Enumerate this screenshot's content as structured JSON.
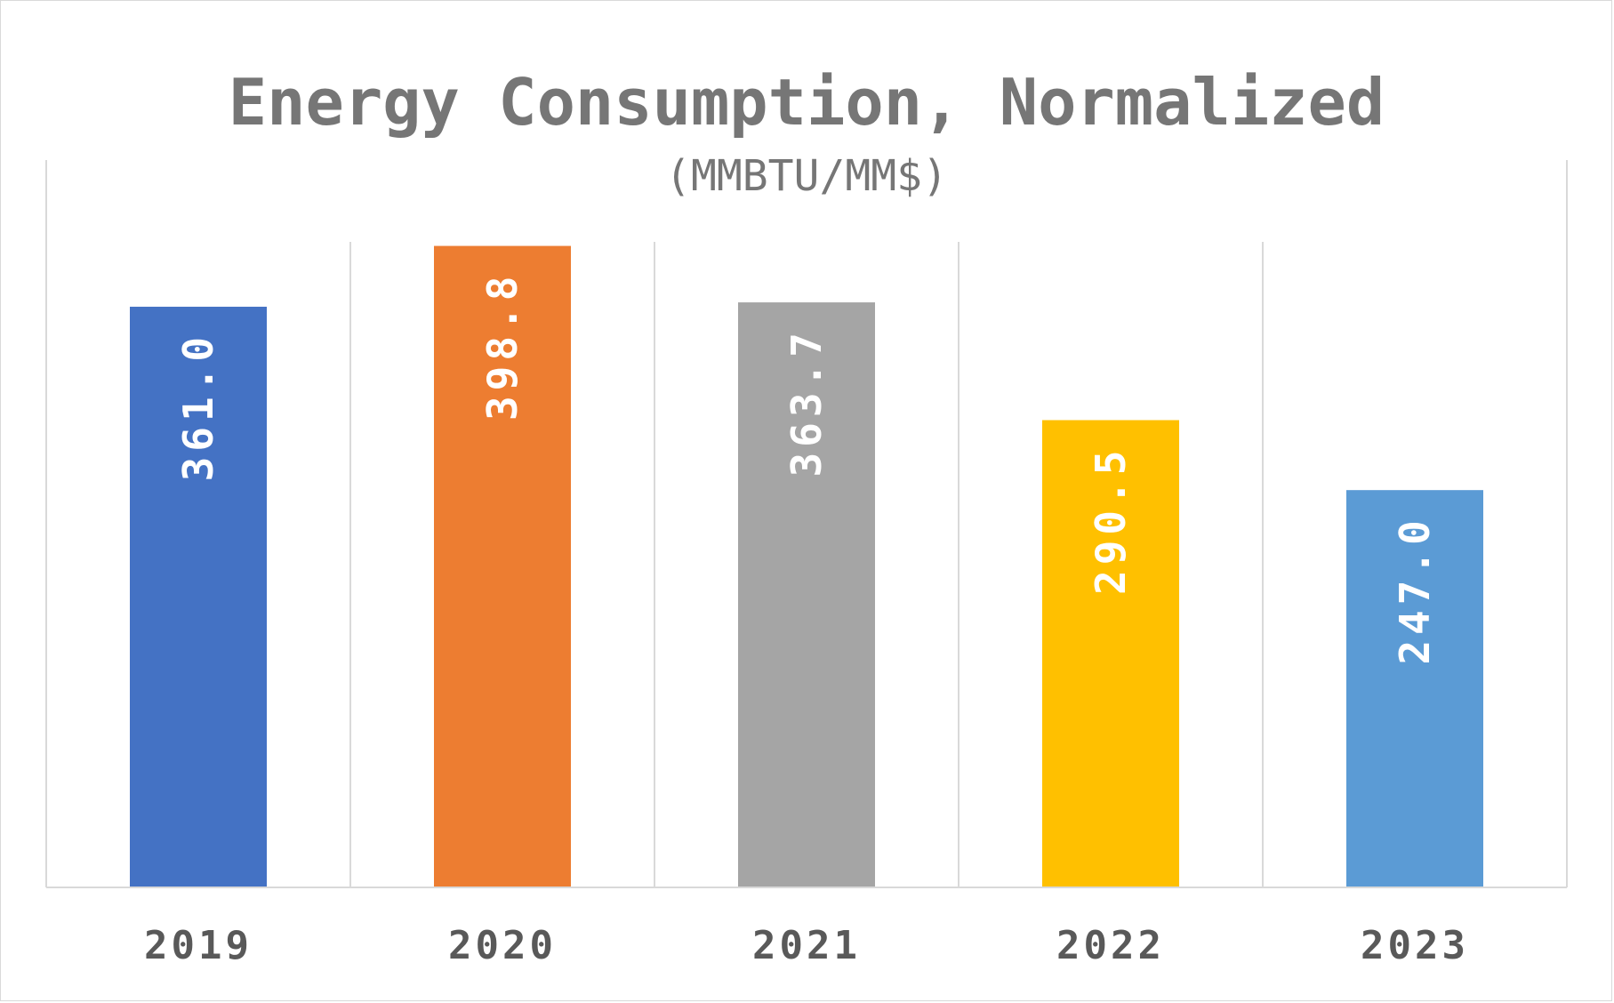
{
  "chart_data": {
    "type": "bar",
    "title": "Energy Consumption, Normalized",
    "subtitle": "(MMBTU/MM$)",
    "categories": [
      "2019",
      "2020",
      "2021",
      "2022",
      "2023"
    ],
    "values": [
      361.0,
      398.8,
      363.7,
      290.5,
      247.0
    ],
    "data_labels": [
      "361.0",
      "398.8",
      "363.7",
      "290.5",
      "247.0"
    ],
    "colors": [
      "#4472C4",
      "#ED7D31",
      "#A5A5A5",
      "#FFC000",
      "#5B9BD5"
    ],
    "ylim": [
      0,
      400
    ],
    "gridlines": "vertical",
    "legend": "none",
    "xlabel": "",
    "ylabel": ""
  }
}
